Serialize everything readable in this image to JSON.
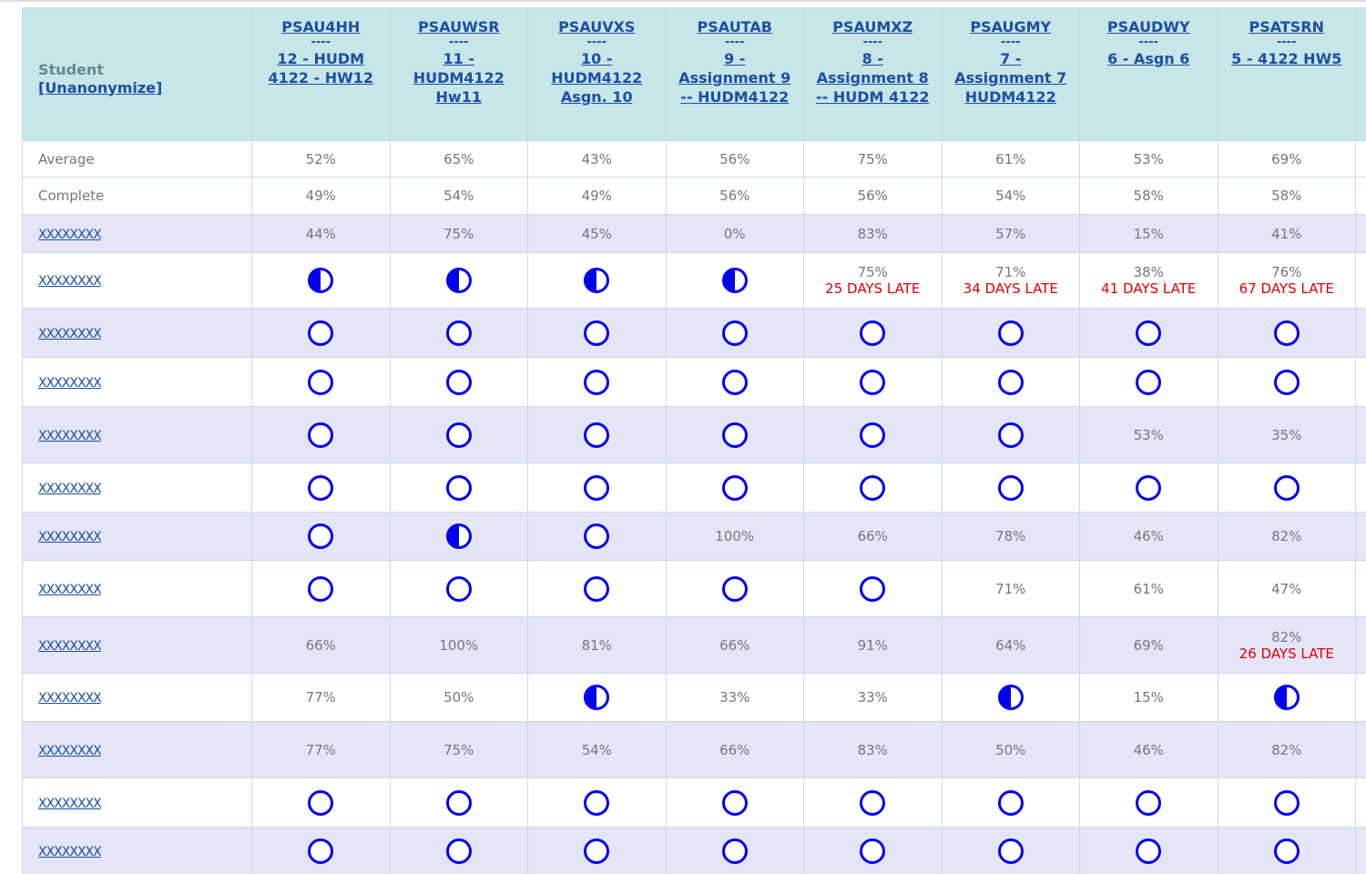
{
  "header": {
    "student": "Student",
    "unanonymize": "[Unanonymize]",
    "columns": [
      {
        "id": "PSAU4HH",
        "separator": "----",
        "title": "12 - HUDM 4122 - HW12"
      },
      {
        "id": "PSAUWSR",
        "separator": "----",
        "title": "11 - HUDM4122 Hw11"
      },
      {
        "id": "PSAUVXS",
        "separator": "----",
        "title": "10 - HUDM4122 Asgn. 10"
      },
      {
        "id": "PSAUTAB",
        "separator": "----",
        "title": "9 - Assignment 9 -- HUDM4122"
      },
      {
        "id": "PSAUMXZ",
        "separator": "----",
        "title": "8 - Assignment 8 -- HUDM 4122"
      },
      {
        "id": "PSAUGMY",
        "separator": "----",
        "title": "7 - Assignment 7 HUDM4122"
      },
      {
        "id": "PSAUDWY",
        "separator": "----",
        "title": "6 - Asgn 6"
      },
      {
        "id": "PSATSRN",
        "separator": "----",
        "title": "5 - 4122 HW5"
      }
    ]
  },
  "summary": [
    {
      "label": "Average",
      "cells": [
        "52%",
        "65%",
        "43%",
        "56%",
        "75%",
        "61%",
        "53%",
        "69%"
      ]
    },
    {
      "label": "Complete",
      "cells": [
        "49%",
        "54%",
        "49%",
        "56%",
        "56%",
        "54%",
        "58%",
        "58%"
      ]
    }
  ],
  "students": [
    {
      "name": "XXXXXXXX",
      "cells": [
        "44%",
        "75%",
        "45%",
        "0%",
        "83%",
        "57%",
        "15%",
        "41%"
      ]
    },
    {
      "name": "XXXXXXXX",
      "cells": [
        null,
        null,
        null,
        null,
        {
          "score": "75%",
          "late": "25 DAYS LATE"
        },
        {
          "score": "71%",
          "late": "34 DAYS LATE"
        },
        {
          "score": "38%",
          "late": "41 DAYS LATE"
        },
        {
          "score": "76%",
          "late": "67 DAYS LATE"
        }
      ]
    },
    {
      "name": "XXXXXXXX",
      "cells": [
        null,
        null,
        null,
        null,
        null,
        null,
        null,
        null
      ]
    },
    {
      "name": "XXXXXXXX",
      "cells": [
        null,
        null,
        null,
        null,
        null,
        null,
        null,
        null
      ]
    },
    {
      "name": "XXXXXXXX",
      "cells": [
        null,
        null,
        null,
        null,
        null,
        null,
        "53%",
        "35%"
      ]
    },
    {
      "name": "XXXXXXXX",
      "cells": [
        null,
        null,
        null,
        null,
        null,
        null,
        null,
        null
      ]
    },
    {
      "name": "XXXXXXXX",
      "cells": [
        null,
        null,
        null,
        "100%",
        "66%",
        "78%",
        "46%",
        "82%"
      ]
    },
    {
      "name": "XXXXXXXX",
      "cells": [
        null,
        null,
        null,
        null,
        null,
        "71%",
        "61%",
        "47%"
      ]
    },
    {
      "name": "XXXXXXXX",
      "cells": [
        "66%",
        "100%",
        "81%",
        "66%",
        "91%",
        "64%",
        "69%",
        {
          "score": "82%",
          "late": "26 DAYS LATE"
        }
      ]
    },
    {
      "name": "XXXXXXXX",
      "cells": [
        "77%",
        "50%",
        null,
        "33%",
        "33%",
        null,
        "15%",
        null
      ]
    },
    {
      "name": "XXXXXXXX",
      "cells": [
        "77%",
        "75%",
        "54%",
        "66%",
        "83%",
        "50%",
        "46%",
        "82%"
      ]
    },
    {
      "name": "XXXXXXXX",
      "cells": [
        null,
        null,
        null,
        null,
        null,
        null,
        null,
        null
      ]
    },
    {
      "name": "XXXXXXXX",
      "cells": [
        null,
        null,
        null,
        null,
        null,
        null,
        null,
        null
      ]
    }
  ]
}
